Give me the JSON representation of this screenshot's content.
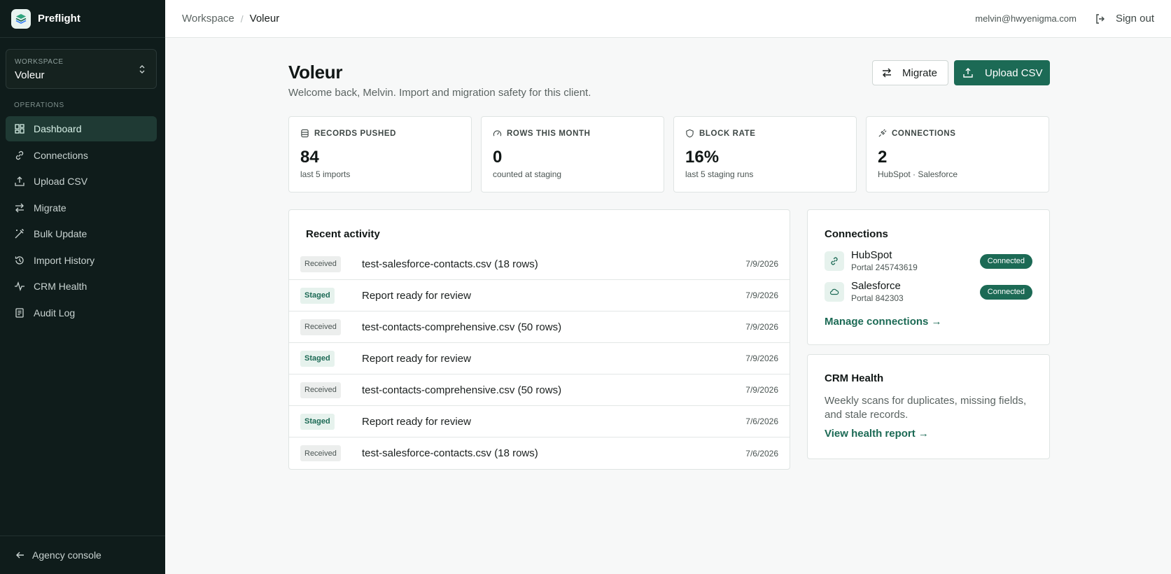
{
  "app": {
    "name": "Preflight"
  },
  "workspace": {
    "label": "WORKSPACE",
    "value": "Voleur"
  },
  "sidebar": {
    "section_label": "OPERATIONS",
    "items": [
      {
        "label": "Dashboard",
        "icon": "dashboard-icon",
        "active": true
      },
      {
        "label": "Connections",
        "icon": "link-icon"
      },
      {
        "label": "Upload CSV",
        "icon": "upload-icon"
      },
      {
        "label": "Migrate",
        "icon": "arrows-icon"
      },
      {
        "label": "Bulk Update",
        "icon": "wand-icon"
      },
      {
        "label": "Import History",
        "icon": "history-icon"
      },
      {
        "label": "CRM Health",
        "icon": "pulse-icon"
      },
      {
        "label": "Audit Log",
        "icon": "log-icon"
      }
    ],
    "footer": "Agency console"
  },
  "topbar": {
    "breadcrumb": [
      "Workspace",
      "Voleur"
    ],
    "email": "melvin@hwyenigma.com",
    "sign_out": "Sign out"
  },
  "page": {
    "title": "Voleur",
    "subtitle": "Welcome back, Melvin. Import and migration safety for this client.",
    "migrate_label": "Migrate",
    "upload_label": "Upload CSV"
  },
  "stats": [
    {
      "label": "RECORDS PUSHED",
      "value": "84",
      "note": "last 5 imports",
      "icon": "database-icon"
    },
    {
      "label": "ROWS THIS MONTH",
      "value": "0",
      "note": "counted at staging",
      "icon": "gauge-icon"
    },
    {
      "label": "BLOCK RATE",
      "value": "16%",
      "note": "last 5 staging runs",
      "icon": "shield-icon"
    },
    {
      "label": "CONNECTIONS",
      "value": "2",
      "note": "HubSpot · Salesforce",
      "icon": "plug-icon"
    }
  ],
  "activity": {
    "title": "Recent activity",
    "rows": [
      {
        "status": "Received",
        "text": "test-salesforce-contacts.csv (18 rows)",
        "date": "7/9/2026"
      },
      {
        "status": "Staged",
        "text": "Report ready for review",
        "date": "7/9/2026"
      },
      {
        "status": "Received",
        "text": "test-contacts-comprehensive.csv (50 rows)",
        "date": "7/9/2026"
      },
      {
        "status": "Staged",
        "text": "Report ready for review",
        "date": "7/9/2026"
      },
      {
        "status": "Received",
        "text": "test-contacts-comprehensive.csv (50 rows)",
        "date": "7/9/2026"
      },
      {
        "status": "Staged",
        "text": "Report ready for review",
        "date": "7/6/2026"
      },
      {
        "status": "Received",
        "text": "test-salesforce-contacts.csv (18 rows)",
        "date": "7/6/2026"
      }
    ]
  },
  "connections": {
    "title": "Connections",
    "items": [
      {
        "name": "HubSpot",
        "portal": "Portal 245743619",
        "status": "Connected",
        "icon": "link-icon"
      },
      {
        "name": "Salesforce",
        "portal": "Portal 842303",
        "status": "Connected",
        "icon": "cloud-icon"
      }
    ],
    "link": "Manage connections →"
  },
  "health": {
    "title": "CRM Health",
    "description": "Weekly scans for duplicates, missing fields, and stale records.",
    "link": "View health report →"
  },
  "colors": {
    "sidebar_bg": "#0f1c1b",
    "accent": "#1c6a55",
    "badge_staged_bg": "#e6f2ed"
  }
}
